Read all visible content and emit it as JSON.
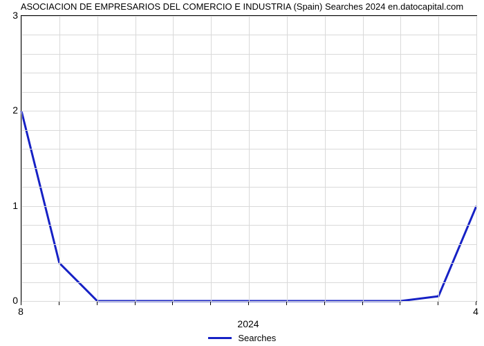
{
  "chart": {
    "type": "line",
    "title": "ASOCIACION DE EMPRESARIOS DEL COMERCIO E INDUSTRIA (Spain) Searches 2024 en.datocapital.com",
    "title_fontsize": 13,
    "title_color": "#000000",
    "background_color": "#ffffff",
    "plot_border_color": "#000000",
    "grid_color": "#d9d9d9",
    "line_color": "#1621c5",
    "line_width": 3,
    "y": {
      "min": 0,
      "max": 3,
      "ticks": [
        0,
        1,
        2,
        3
      ],
      "n_minor_between": 4,
      "label_fontsize": 14
    },
    "x": {
      "n_points": 13,
      "primary_labels": {
        "0": "8",
        "12": "4"
      },
      "secondary_labels": {
        "6": "2024"
      },
      "label_fontsize": 14
    },
    "series": {
      "values": [
        2.0,
        0.4,
        0,
        0,
        0,
        0,
        0,
        0,
        0,
        0,
        0,
        0.05,
        1.0
      ],
      "name": "Searches"
    },
    "legend": {
      "label": "Searches",
      "line_color": "#1621c5",
      "fontsize": 13
    }
  }
}
